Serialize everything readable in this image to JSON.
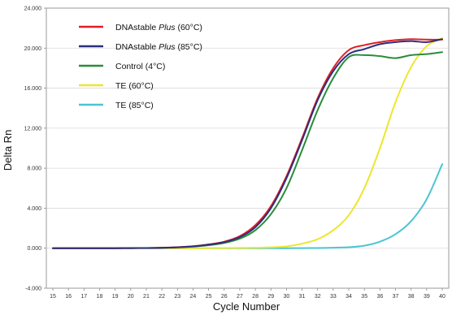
{
  "chart_data": {
    "type": "line",
    "xlabel": "Cycle Number",
    "ylabel": "Delta Rn",
    "xlim": [
      15,
      40
    ],
    "ylim": [
      -4000,
      24000
    ],
    "y_ticks": [
      -4000,
      0,
      4000,
      8000,
      12000,
      16000,
      20000,
      24000
    ],
    "y_tick_labels": [
      "-4.000",
      "0.000",
      "4.000",
      "8.000",
      "12.000",
      "16.000",
      "20.000",
      "24.000"
    ],
    "x_ticks": [
      15,
      16,
      17,
      18,
      19,
      20,
      21,
      22,
      23,
      24,
      25,
      26,
      27,
      28,
      29,
      30,
      31,
      32,
      33,
      34,
      35,
      36,
      37,
      38,
      39,
      40
    ],
    "x_tick_labels": [
      "15",
      "16",
      "17",
      "18",
      "19",
      "20",
      "21",
      "22",
      "23",
      "24",
      "25",
      "26",
      "27",
      "28",
      "29",
      "30",
      "31",
      "32",
      "33",
      "34",
      "35",
      "36",
      "37",
      "38",
      "39",
      "40"
    ],
    "grid": "horizontal",
    "legend_position": "top-left",
    "x": [
      15,
      16,
      17,
      18,
      19,
      20,
      21,
      22,
      23,
      24,
      25,
      26,
      27,
      28,
      29,
      30,
      31,
      32,
      33,
      34,
      35,
      36,
      37,
      38,
      39,
      40
    ],
    "series": [
      {
        "name": "DNAstable Plus (60°C)",
        "name_parts": [
          "DNAstable ",
          "Plus",
          " (60°C)"
        ],
        "color": "#e31e24",
        "values": [
          0,
          0,
          0,
          0,
          0,
          10,
          20,
          50,
          100,
          200,
          380,
          650,
          1200,
          2300,
          4200,
          7200,
          11000,
          15000,
          18000,
          19800,
          20300,
          20600,
          20800,
          20900,
          20850,
          20850
        ]
      },
      {
        "name": "DNAstable Plus (85°C)",
        "name_parts": [
          "DNAstable ",
          "Plus",
          " (85°C)"
        ],
        "color": "#2b2f7e",
        "values": [
          0,
          0,
          0,
          0,
          0,
          10,
          20,
          40,
          90,
          180,
          350,
          600,
          1100,
          2100,
          4000,
          7000,
          10800,
          14800,
          17700,
          19400,
          19900,
          20400,
          20600,
          20700,
          20600,
          20900
        ]
      },
      {
        "name": "Control (4°C)",
        "name_parts": [
          "Control (4°C)",
          "",
          ""
        ],
        "color": "#2a8c3a",
        "values": [
          0,
          0,
          0,
          0,
          0,
          10,
          20,
          40,
          80,
          160,
          300,
          520,
          950,
          1800,
          3400,
          6000,
          9800,
          13800,
          17000,
          19100,
          19300,
          19200,
          19000,
          19300,
          19400,
          19600
        ]
      },
      {
        "name": "TE (60°C)",
        "name_parts": [
          "TE (60°C)",
          "",
          ""
        ],
        "color": "#ede62d",
        "values": [
          0,
          0,
          0,
          0,
          0,
          0,
          0,
          0,
          0,
          0,
          10,
          20,
          30,
          50,
          90,
          180,
          450,
          900,
          1800,
          3300,
          6000,
          10000,
          14600,
          18100,
          20200,
          21000
        ]
      },
      {
        "name": "TE (85°C)",
        "name_parts": [
          "TE (85°C)",
          "",
          ""
        ],
        "color": "#4bc5d2",
        "values": [
          0,
          0,
          0,
          0,
          0,
          0,
          0,
          0,
          0,
          0,
          0,
          0,
          0,
          0,
          0,
          0,
          10,
          20,
          50,
          100,
          250,
          650,
          1400,
          2700,
          4900,
          8400
        ]
      }
    ]
  }
}
